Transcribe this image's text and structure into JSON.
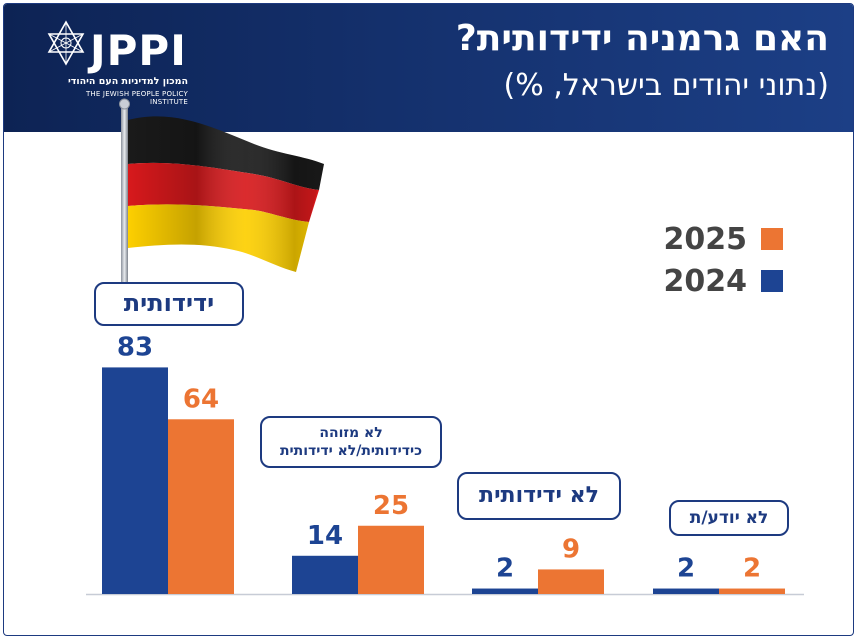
{
  "header": {
    "logo_text": "JPPI",
    "logo_hebrew": "המכון למדיניות העם היהודי",
    "logo_english": "THE JEWISH PEOPLE POLICY INSTITUTE",
    "title": "האם גרמניה ידידותית?",
    "subtitle": "(נתוני יהודים בישראל, %)"
  },
  "colors": {
    "y2024": "#1d4493",
    "y2025": "#ec7533",
    "navy": "#1d3a80"
  },
  "chart_data": {
    "type": "bar",
    "title": "האם גרמניה ידידותית?",
    "subtitle": "(נתוני יהודים בישראל, %)",
    "categories": [
      "ידידותית",
      "לא מזוהה כידידותית/לא ידידותית",
      "לא ידידותית",
      "לא יודע/ת"
    ],
    "category_lines": [
      [
        "ידידותית"
      ],
      [
        "לא מזוהה",
        "כידידותית/לא ידידותית"
      ],
      [
        "לא ידידותית"
      ],
      [
        "לא יודע/ת"
      ]
    ],
    "series": [
      {
        "name": "2024",
        "values": [
          83,
          14,
          2,
          2
        ]
      },
      {
        "name": "2025",
        "values": [
          64,
          25,
          9,
          2
        ]
      }
    ],
    "legend": [
      "2025",
      "2024"
    ],
    "ylim": [
      0,
      100
    ],
    "grid": false,
    "legend_position": "right"
  }
}
